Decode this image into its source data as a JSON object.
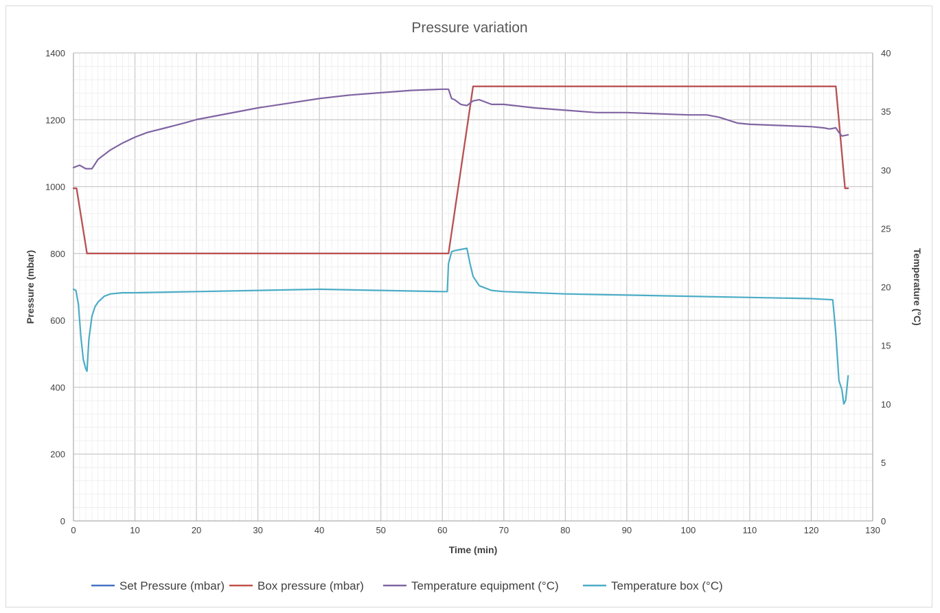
{
  "chart_data": {
    "type": "line",
    "title": "Pressure variation",
    "xlabel": "Time (min)",
    "ylabel": "Pressure (mbar)",
    "y2label": "Temperature (°C)",
    "xlim": [
      0,
      130
    ],
    "ylim": [
      0,
      1400
    ],
    "y2lim": [
      0,
      40
    ],
    "x_ticks": [
      0,
      10,
      20,
      30,
      40,
      50,
      60,
      70,
      80,
      90,
      100,
      110,
      120,
      130
    ],
    "y_ticks": [
      0,
      200,
      400,
      600,
      800,
      1000,
      1200,
      1400
    ],
    "y2_ticks": [
      0,
      5,
      10,
      15,
      20,
      25,
      30,
      35,
      40
    ],
    "grid": true,
    "legend_position": "bottom",
    "series": [
      {
        "name": "Set Pressure (mbar)",
        "axis": "left",
        "color": "#4472c4",
        "x": [
          0,
          0.5,
          2.2,
          61,
          65,
          124,
          125.5,
          126
        ],
        "y": [
          995,
          995,
          800,
          800,
          1300,
          1300,
          995,
          995
        ]
      },
      {
        "name": "Box pressure (mbar)",
        "axis": "left",
        "color": "#c0504d",
        "x": [
          0,
          0.5,
          2.2,
          61,
          65,
          124,
          125.5,
          126
        ],
        "y": [
          995,
          995,
          800,
          800,
          1300,
          1300,
          995,
          995
        ]
      },
      {
        "name": "Temperature equipment (°C)",
        "axis": "right",
        "color": "#8064a2",
        "x": [
          0,
          1,
          2,
          3,
          4,
          6,
          8,
          10,
          12,
          15,
          18,
          20,
          25,
          30,
          35,
          40,
          45,
          50,
          55,
          60,
          61,
          61.5,
          62,
          63,
          64,
          65,
          66,
          68,
          70,
          75,
          80,
          85,
          90,
          95,
          100,
          103,
          105,
          108,
          110,
          115,
          120,
          122,
          123,
          124,
          124.5,
          125,
          126
        ],
        "y": [
          30.2,
          30.4,
          30.1,
          30.1,
          30.9,
          31.7,
          32.3,
          32.8,
          33.2,
          33.6,
          34.0,
          34.3,
          34.8,
          35.3,
          35.7,
          36.1,
          36.4,
          36.6,
          36.8,
          36.9,
          36.9,
          36.1,
          36.0,
          35.6,
          35.5,
          35.9,
          36.0,
          35.6,
          35.6,
          35.3,
          35.1,
          34.9,
          34.9,
          34.8,
          34.7,
          34.7,
          34.5,
          34.0,
          33.9,
          33.8,
          33.7,
          33.6,
          33.5,
          33.6,
          33.2,
          32.9,
          33.0
        ]
      },
      {
        "name": "Temperature box (°C)",
        "axis": "right",
        "color": "#4bacc6",
        "x": [
          0,
          0.4,
          0.8,
          1.2,
          1.6,
          2,
          2.2,
          2.5,
          3,
          3.5,
          4,
          5,
          6,
          8,
          10,
          20,
          30,
          40,
          50,
          60,
          60.8,
          61,
          61.5,
          62,
          63,
          64,
          64.5,
          65,
          66,
          68,
          70,
          80,
          90,
          100,
          110,
          120,
          123.5,
          124,
          124.5,
          125,
          125.3,
          125.6,
          126
        ],
        "y": [
          19.8,
          19.7,
          18.5,
          15.8,
          13.8,
          13.0,
          12.8,
          15.5,
          17.5,
          18.3,
          18.7,
          19.2,
          19.4,
          19.5,
          19.5,
          19.6,
          19.7,
          19.8,
          19.7,
          19.6,
          19.6,
          22.0,
          23.0,
          23.1,
          23.2,
          23.3,
          22.0,
          20.9,
          20.1,
          19.7,
          19.6,
          19.4,
          19.3,
          19.2,
          19.1,
          19.0,
          18.9,
          16.0,
          12.0,
          11.2,
          10.0,
          10.3,
          12.4
        ]
      }
    ]
  }
}
